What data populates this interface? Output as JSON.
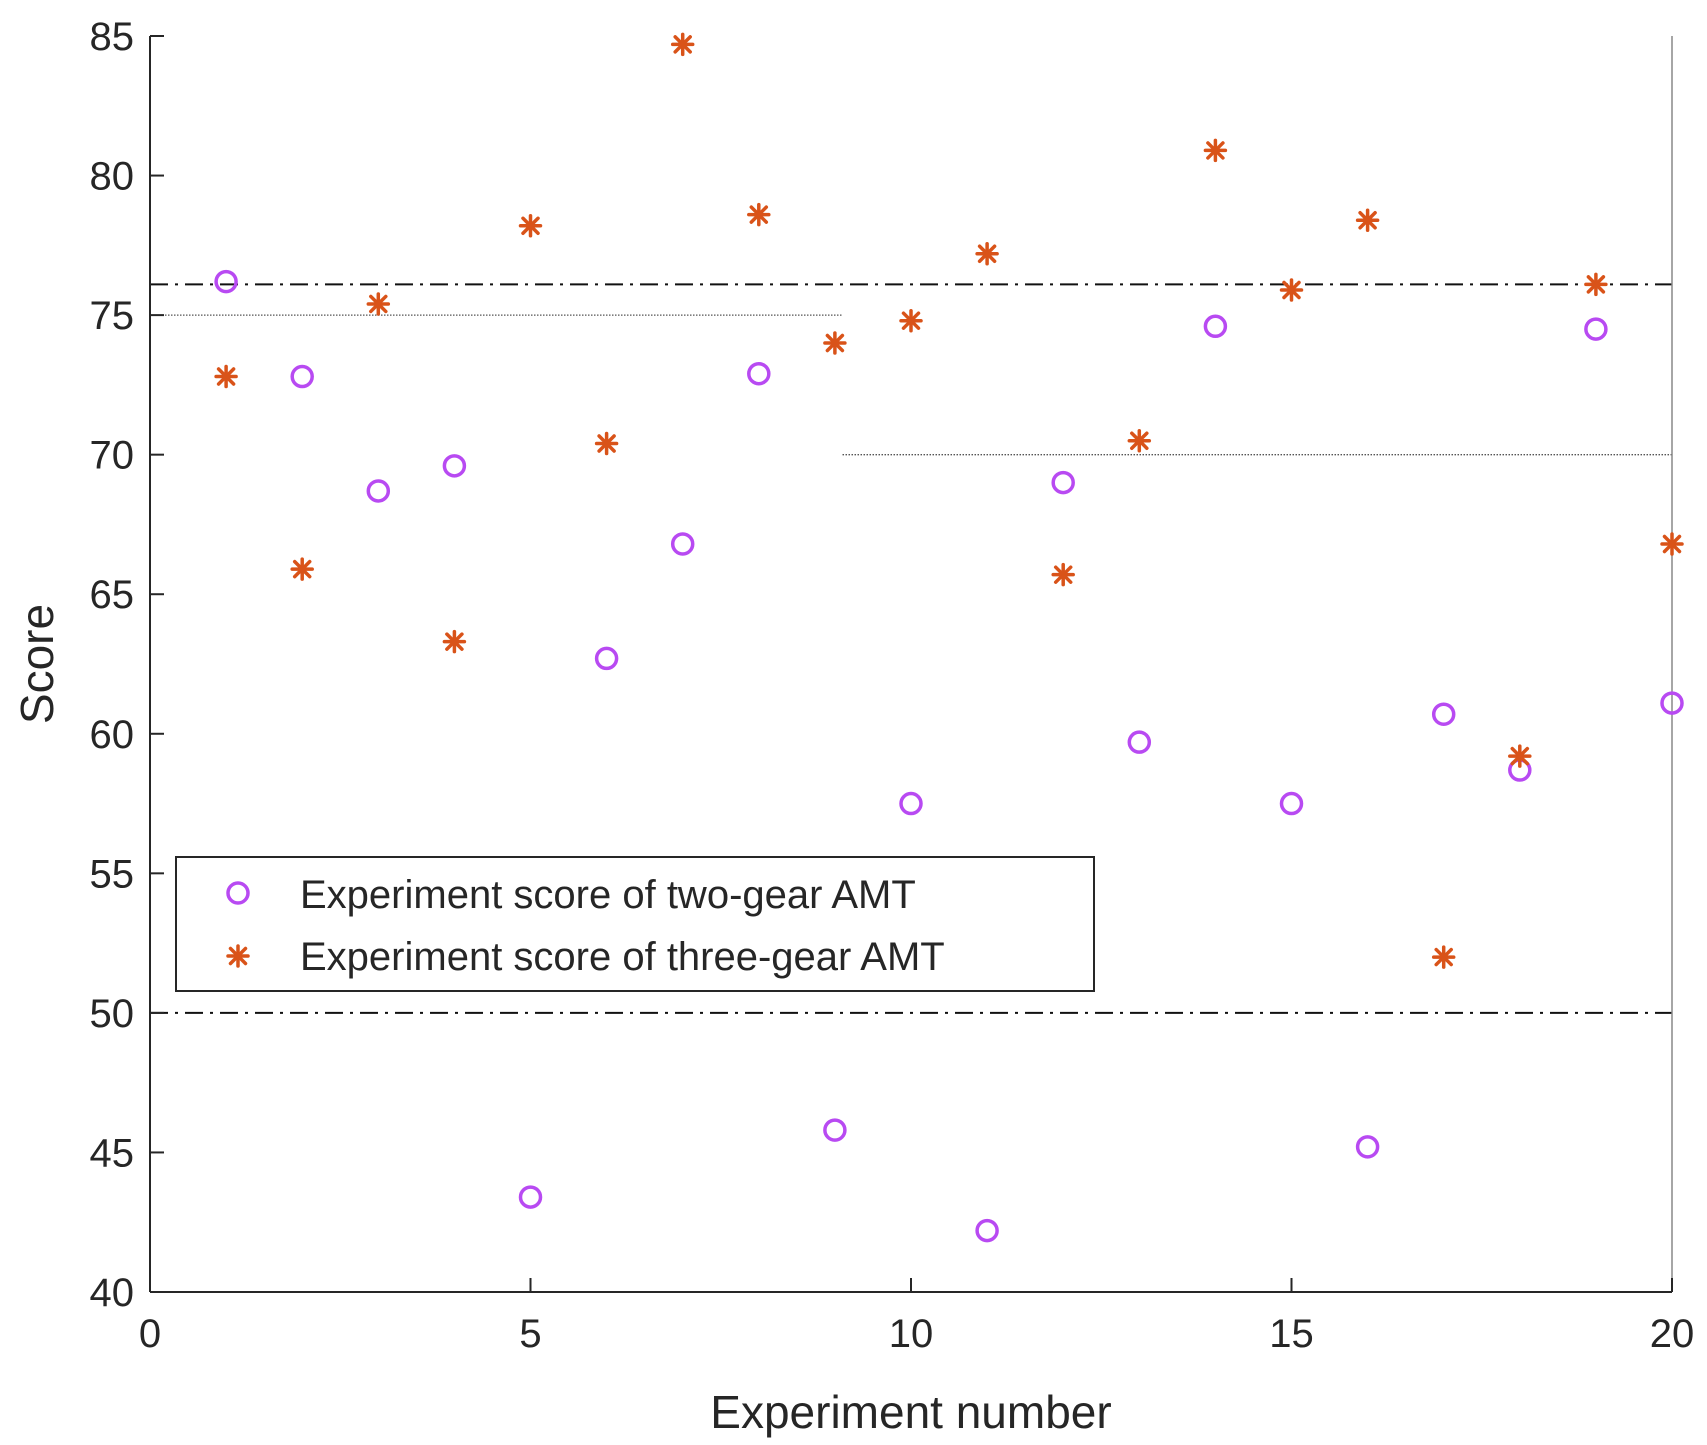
{
  "chart_data": {
    "type": "scatter",
    "xlabel": "Experiment number",
    "ylabel": "Score",
    "xlim": [
      0,
      20
    ],
    "ylim": [
      40,
      85
    ],
    "xticks": [
      0,
      5,
      10,
      15,
      20
    ],
    "yticks": [
      40,
      45,
      50,
      55,
      60,
      65,
      70,
      75,
      80,
      85
    ],
    "legend_position": "lower-left",
    "colors": {
      "two_gear": "#b84af2",
      "three_gear": "#d95319",
      "axis": "#262626"
    },
    "series": [
      {
        "name": "Experiment score of two-gear AMT",
        "marker": "circle",
        "x": [
          1,
          2,
          3,
          4,
          5,
          6,
          7,
          8,
          9,
          10,
          11,
          12,
          13,
          14,
          15,
          16,
          17,
          18,
          19,
          20
        ],
        "values": [
          76.2,
          72.8,
          68.7,
          69.6,
          43.4,
          62.7,
          66.8,
          72.9,
          45.8,
          57.5,
          42.2,
          69.0,
          59.7,
          74.6,
          57.5,
          45.2,
          60.7,
          58.7,
          74.5,
          61.1
        ]
      },
      {
        "name": "Experiment score of three-gear AMT",
        "marker": "asterisk",
        "x": [
          1,
          2,
          3,
          4,
          5,
          6,
          7,
          8,
          9,
          10,
          11,
          12,
          13,
          14,
          15,
          16,
          17,
          18,
          19,
          20
        ],
        "values": [
          72.8,
          65.9,
          75.4,
          63.3,
          78.2,
          70.4,
          84.7,
          78.6,
          74.0,
          74.8,
          77.2,
          65.7,
          70.5,
          80.9,
          75.9,
          78.4,
          52.0,
          59.2,
          76.1,
          66.8
        ]
      }
    ],
    "reference_lines": [
      {
        "style": "dash-dot",
        "y": 76.1,
        "x_from": 0,
        "x_to": 20
      },
      {
        "style": "dotted",
        "y": 75.0,
        "x_from": 0,
        "x_to": 9.1
      },
      {
        "style": "dotted",
        "y": 70.0,
        "x_from": 9.1,
        "x_to": 20
      },
      {
        "style": "dash-dot",
        "y": 50.0,
        "x_from": 0,
        "x_to": 20
      },
      {
        "style": "solid-thin",
        "x": 20,
        "y_from": 40,
        "y_to": 85
      }
    ]
  }
}
